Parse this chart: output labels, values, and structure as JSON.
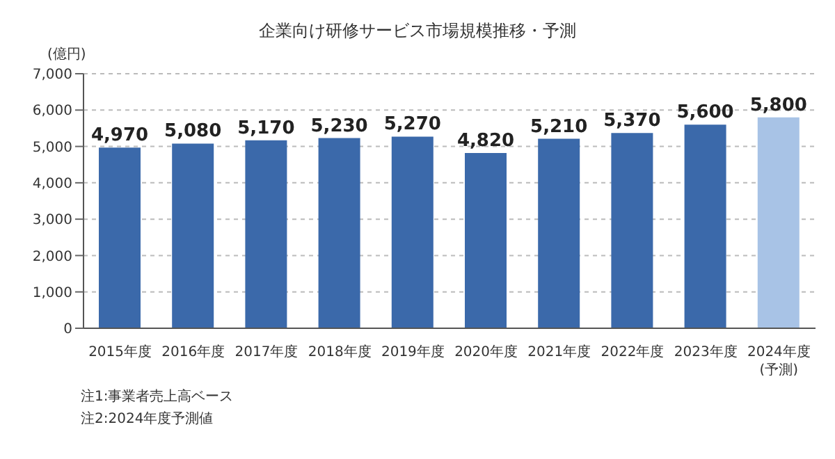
{
  "chart_data": {
    "type": "bar",
    "title": "企業向け研修サービス市場規模推移・予測",
    "ylabel": "(億円)",
    "categories": [
      "2015年度",
      "2016年度",
      "2017年度",
      "2018年度",
      "2019年度",
      "2020年度",
      "2021年度",
      "2022年度",
      "2023年度",
      "2024年度\n(予測)"
    ],
    "values": [
      4970,
      5080,
      5170,
      5230,
      5270,
      4820,
      5210,
      5370,
      5600,
      5800
    ],
    "colors": [
      "#3b69aa",
      "#3b69aa",
      "#3b69aa",
      "#3b69aa",
      "#3b69aa",
      "#3b69aa",
      "#3b69aa",
      "#3b69aa",
      "#3b69aa",
      "#a8c3e6"
    ],
    "ylim": [
      0,
      7000
    ],
    "yticks": [
      {
        "value": 0,
        "label": "0"
      },
      {
        "value": 1000,
        "label": "1,000"
      },
      {
        "value": 2000,
        "label": "2,000"
      },
      {
        "value": 3000,
        "label": "3,000"
      },
      {
        "value": 4000,
        "label": "4,000"
      },
      {
        "value": 5000,
        "label": "5,000"
      },
      {
        "value": 6000,
        "label": "6,000"
      },
      {
        "value": 7000,
        "label": "7,000"
      }
    ],
    "value_labels": [
      "4,970",
      "5,080",
      "5,170",
      "5,230",
      "5,270",
      "4,820",
      "5,210",
      "5,370",
      "5,600",
      "5,800"
    ],
    "grid": "y",
    "annotations": [
      "注1:事業者売上高ベース",
      "注2:2024年度予測値"
    ]
  }
}
